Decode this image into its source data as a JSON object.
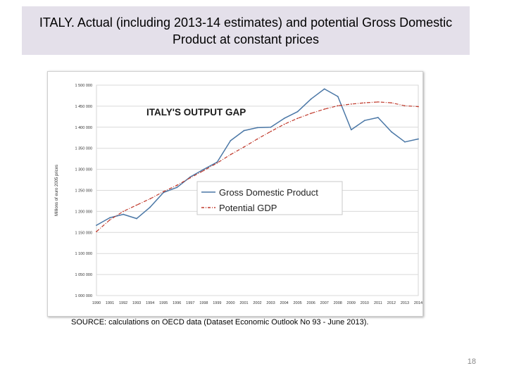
{
  "slide": {
    "title": "ITALY. Actual (including 2013-14 estimates) and potential Gross Domestic Product at constant prices",
    "source": "SOURCE: calculations on OECD data (Dataset Economic Outlook No 93 - June 2013).",
    "page_number": "18"
  },
  "chart_data": {
    "type": "line",
    "title": "ITALY'S OUTPUT GAP",
    "xlabel": "",
    "ylabel": "Millions of euro 2005 prices",
    "x": [
      "1990",
      "1991",
      "1992",
      "1993",
      "1994",
      "1995",
      "1996",
      "1997",
      "1998",
      "1999",
      "2000",
      "2001",
      "2002",
      "2003",
      "2004",
      "2005",
      "2006",
      "2007",
      "2008",
      "2009",
      "2010",
      "2011",
      "2012",
      "2013",
      "2014"
    ],
    "ylim": [
      1000000,
      1500000
    ],
    "yticks": [
      1000000,
      1050000,
      1100000,
      1150000,
      1200000,
      1250000,
      1300000,
      1350000,
      1400000,
      1450000,
      1500000
    ],
    "ytick_labels": [
      "1 000 000",
      "1 050 000",
      "1 100 000",
      "1 150 000",
      "1 200 000",
      "1 250 000",
      "1 300 000",
      "1 350 000",
      "1 400 000",
      "1 450 000",
      "1 500 000"
    ],
    "grid": true,
    "legend_position": "center-right",
    "series": [
      {
        "name": "Gross Domestic Product",
        "color": "#4a77a6",
        "style": "solid",
        "values": [
          1167000,
          1185000,
          1193000,
          1183000,
          1210000,
          1245000,
          1257000,
          1282000,
          1300000,
          1317000,
          1368000,
          1392000,
          1399000,
          1400000,
          1421000,
          1437000,
          1467000,
          1491000,
          1473000,
          1394000,
          1416000,
          1423000,
          1389000,
          1365000,
          1372000
        ]
      },
      {
        "name": "Potential GDP",
        "color": "#c0392b",
        "style": "dashdot",
        "values": [
          1152000,
          1180000,
          1200000,
          1215000,
          1230000,
          1247000,
          1262000,
          1280000,
          1297000,
          1315000,
          1335000,
          1353000,
          1372000,
          1390000,
          1407000,
          1421000,
          1433000,
          1443000,
          1451000,
          1455000,
          1458000,
          1460000,
          1458000,
          1451000,
          1449000
        ]
      }
    ]
  }
}
